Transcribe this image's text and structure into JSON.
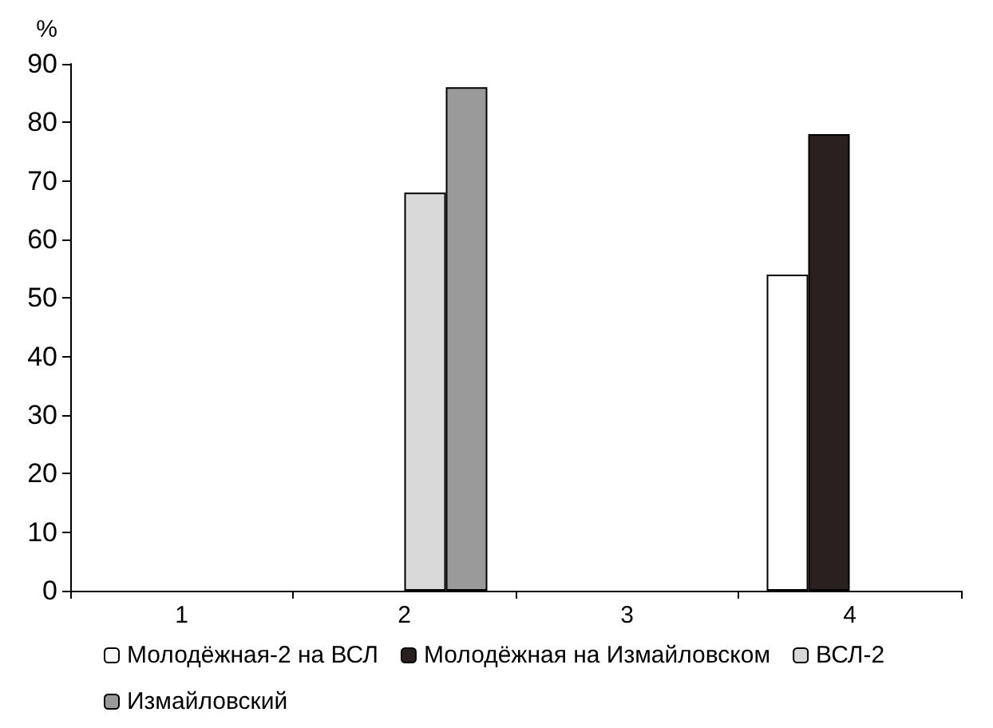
{
  "chart_data": {
    "type": "bar",
    "ylabel": "%",
    "categories": [
      "1",
      "2",
      "3",
      "4"
    ],
    "series": [
      {
        "name": "Молодёжная-2 на ВСЛ",
        "color": "#ffffff",
        "values": [
          null,
          null,
          null,
          54
        ]
      },
      {
        "name": "Молодёжная на Измайловском",
        "color": "#2b2020",
        "values": [
          null,
          null,
          null,
          78
        ]
      },
      {
        "name": "ВСЛ-2",
        "color": "#d9d9d9",
        "values": [
          null,
          68,
          null,
          null
        ]
      },
      {
        "name": "Измайловский",
        "color": "#9a9a9a",
        "values": [
          null,
          86,
          null,
          null
        ]
      }
    ],
    "ylim": [
      0,
      90
    ],
    "yticks": [
      0,
      10,
      20,
      30,
      40,
      50,
      60,
      70,
      80,
      90
    ],
    "grid": false,
    "legend": "bottom"
  }
}
